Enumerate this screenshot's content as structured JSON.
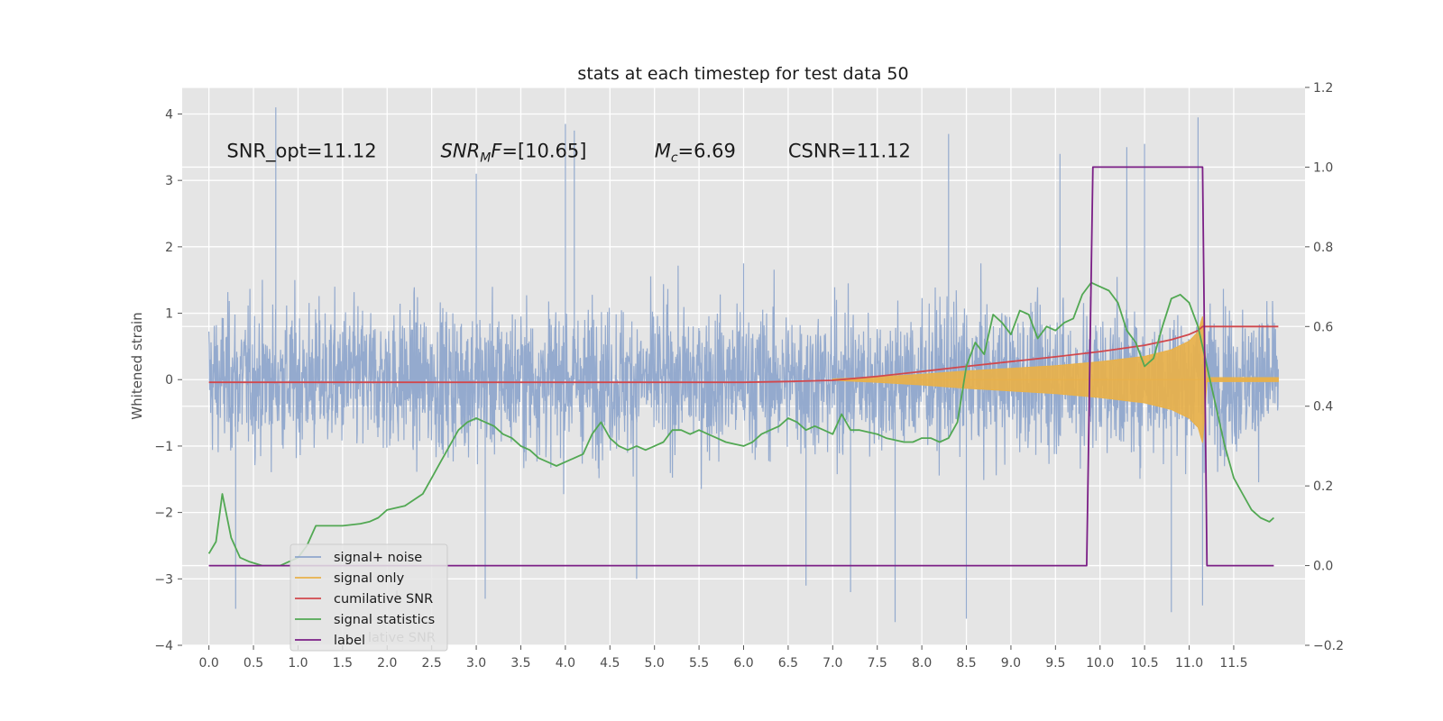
{
  "chart_data": {
    "type": "line",
    "title": "stats at each timestep for test data 50",
    "ylabel_left": "Whitened strain",
    "xlim": [
      -0.3,
      12.3
    ],
    "ylim_left": [
      -4.0,
      4.4
    ],
    "ylim_right": [
      -0.2,
      1.2
    ],
    "x_ticks": [
      0.0,
      0.5,
      1.0,
      1.5,
      2.0,
      2.5,
      3.0,
      3.5,
      4.0,
      4.5,
      5.0,
      5.5,
      6.0,
      6.5,
      7.0,
      7.5,
      8.0,
      8.5,
      9.0,
      9.5,
      10.0,
      10.5,
      11.0,
      11.5
    ],
    "x_tick_labels": [
      "0.0",
      "0.5",
      "1.0",
      "1.5",
      "2.0",
      "2.5",
      "3.0",
      "3.5",
      "4.0",
      "4.5",
      "5.0",
      "5.5",
      "6.0",
      "6.5",
      "7.0",
      "7.5",
      "8.0",
      "8.5",
      "9.0",
      "9.5",
      "10.0",
      "10.5",
      "11.0",
      "11.5"
    ],
    "y_left_ticks": [
      -4,
      -3,
      -2,
      -1,
      0,
      1,
      2,
      3,
      4
    ],
    "y_left_tick_labels": [
      "−4",
      "−3",
      "−2",
      "−1",
      "0",
      "1",
      "2",
      "3",
      "4"
    ],
    "y_right_ticks": [
      -0.2,
      0.0,
      0.2,
      0.4,
      0.6,
      0.8,
      1.0,
      1.2
    ],
    "y_right_tick_labels": [
      "−0.2",
      "0.0",
      "0.2",
      "0.4",
      "0.6",
      "0.8",
      "1.0",
      "1.2"
    ],
    "grid": true,
    "annotations": [
      {
        "parts": [
          {
            "t": "SNR_opt=11.12",
            "s": "n"
          }
        ],
        "x": 0.2,
        "y": 3.35
      },
      {
        "parts": [
          {
            "t": "SNR",
            "s": "i"
          },
          {
            "t": "M",
            "s": "sub"
          },
          {
            "t": "F",
            "s": "i"
          },
          {
            "t": "=[10.65]",
            "s": "n"
          }
        ],
        "x": 2.6,
        "y": 3.35
      },
      {
        "parts": [
          {
            "t": "M",
            "s": "i"
          },
          {
            "t": "c",
            "s": "sub"
          },
          {
            "t": "=6.69",
            "s": "n"
          }
        ],
        "x": 5.0,
        "y": 3.35
      },
      {
        "parts": [
          {
            "t": "CSNR=11.12",
            "s": "n"
          }
        ],
        "x": 6.5,
        "y": 3.35
      }
    ],
    "series": [
      {
        "name": "signal+ noise",
        "color": "#8fa6cc",
        "axis": "left",
        "style": "noise",
        "x_range": [
          0.0,
          12.0
        ],
        "typical_range": [
          -2.1,
          2.1
        ],
        "spikes": [
          [
            0.75,
            4.1
          ],
          [
            4.0,
            3.85
          ],
          [
            4.1,
            3.75
          ],
          [
            3.0,
            3.1
          ],
          [
            11.1,
            3.95
          ],
          [
            8.3,
            3.7
          ],
          [
            9.55,
            3.4
          ],
          [
            10.3,
            3.5
          ],
          [
            10.5,
            3.55
          ],
          [
            6.0,
            1.75
          ],
          [
            0.3,
            -3.45
          ],
          [
            4.8,
            -3.0
          ],
          [
            6.7,
            -3.1
          ],
          [
            7.2,
            -3.2
          ],
          [
            7.7,
            -3.65
          ],
          [
            8.5,
            -3.6
          ],
          [
            10.8,
            -3.5
          ],
          [
            11.15,
            -3.4
          ],
          [
            3.1,
            -3.3
          ]
        ]
      },
      {
        "name": "signal only",
        "color": "#e8b14a",
        "axis": "left",
        "style": "chirp",
        "x": [
          7.0,
          7.5,
          8.0,
          8.5,
          9.0,
          9.5,
          10.0,
          10.5,
          10.8,
          11.0,
          11.1,
          11.15,
          11.2,
          12.0
        ],
        "amplitude": [
          0.01,
          0.04,
          0.08,
          0.13,
          0.17,
          0.21,
          0.27,
          0.35,
          0.45,
          0.58,
          0.72,
          0.95,
          0.03,
          0.03
        ]
      },
      {
        "name": "cumilative SNR",
        "color": "#d1484d",
        "axis": "right",
        "x": [
          0.0,
          6.0,
          6.5,
          7.0,
          7.5,
          8.0,
          8.5,
          9.0,
          9.5,
          10.0,
          10.5,
          10.8,
          11.0,
          11.1,
          11.15,
          11.2,
          12.0
        ],
        "values": [
          0.46,
          0.46,
          0.462,
          0.465,
          0.475,
          0.487,
          0.5,
          0.512,
          0.524,
          0.537,
          0.553,
          0.567,
          0.58,
          0.59,
          0.6,
          0.6,
          0.6
        ]
      },
      {
        "name": "signal statistics",
        "color": "#52a853",
        "axis": "right",
        "x": [
          0.0,
          0.08,
          0.15,
          0.25,
          0.35,
          0.45,
          0.6,
          0.8,
          1.0,
          1.1,
          1.2,
          1.3,
          1.5,
          1.7,
          1.8,
          1.9,
          2.0,
          2.2,
          2.3,
          2.4,
          2.5,
          2.6,
          2.7,
          2.8,
          2.9,
          3.0,
          3.1,
          3.2,
          3.3,
          3.4,
          3.5,
          3.6,
          3.7,
          3.8,
          3.9,
          4.0,
          4.1,
          4.2,
          4.3,
          4.4,
          4.5,
          4.6,
          4.7,
          4.8,
          4.9,
          5.0,
          5.1,
          5.2,
          5.3,
          5.4,
          5.5,
          5.6,
          5.7,
          5.8,
          5.9,
          6.0,
          6.1,
          6.2,
          6.3,
          6.4,
          6.5,
          6.6,
          6.7,
          6.8,
          6.9,
          7.0,
          7.1,
          7.2,
          7.3,
          7.5,
          7.6,
          7.8,
          7.9,
          8.0,
          8.1,
          8.2,
          8.3,
          8.4,
          8.5,
          8.6,
          8.7,
          8.8,
          8.9,
          9.0,
          9.1,
          9.2,
          9.3,
          9.4,
          9.5,
          9.6,
          9.7,
          9.8,
          9.9,
          10.0,
          10.1,
          10.2,
          10.3,
          10.4,
          10.5,
          10.6,
          10.7,
          10.8,
          10.9,
          11.0,
          11.1,
          11.2,
          11.3,
          11.4,
          11.5,
          11.6,
          11.7,
          11.8,
          11.9,
          11.95
        ],
        "values": [
          0.03,
          0.06,
          0.18,
          0.07,
          0.02,
          0.01,
          0.0,
          0.0,
          0.02,
          0.05,
          0.1,
          0.1,
          0.1,
          0.105,
          0.11,
          0.12,
          0.14,
          0.15,
          0.165,
          0.18,
          0.22,
          0.26,
          0.3,
          0.34,
          0.36,
          0.37,
          0.36,
          0.35,
          0.33,
          0.32,
          0.3,
          0.29,
          0.27,
          0.26,
          0.25,
          0.26,
          0.27,
          0.28,
          0.33,
          0.36,
          0.32,
          0.3,
          0.29,
          0.3,
          0.29,
          0.3,
          0.31,
          0.34,
          0.34,
          0.33,
          0.34,
          0.33,
          0.32,
          0.31,
          0.305,
          0.3,
          0.31,
          0.33,
          0.34,
          0.35,
          0.37,
          0.36,
          0.34,
          0.35,
          0.34,
          0.33,
          0.38,
          0.34,
          0.34,
          0.33,
          0.32,
          0.31,
          0.31,
          0.32,
          0.32,
          0.31,
          0.32,
          0.36,
          0.5,
          0.56,
          0.53,
          0.63,
          0.61,
          0.58,
          0.64,
          0.63,
          0.57,
          0.6,
          0.59,
          0.61,
          0.62,
          0.68,
          0.71,
          0.7,
          0.69,
          0.66,
          0.59,
          0.56,
          0.5,
          0.52,
          0.6,
          0.67,
          0.68,
          0.66,
          0.6,
          0.5,
          0.4,
          0.3,
          0.22,
          0.18,
          0.14,
          0.12,
          0.11,
          0.12
        ]
      },
      {
        "name": "label",
        "color": "#7b1f86",
        "axis": "right",
        "x": [
          0.0,
          9.85,
          9.92,
          11.15,
          11.2,
          11.95
        ],
        "values": [
          0.0,
          0.0,
          1.0,
          1.0,
          0.0,
          0.0
        ]
      }
    ],
    "legend": {
      "placement": "lower-left",
      "entries": [
        {
          "label": "signal+ noise",
          "color": "#8fa6cc"
        },
        {
          "label": "signal only",
          "color": "#e8b14a"
        },
        {
          "label": "cumilative SNR",
          "color": "#d1484d"
        },
        {
          "label": "signal statistics",
          "color": "#52a853"
        },
        {
          "label": "label",
          "color": "#7b1f86"
        }
      ],
      "underlying_text": [
        "lative SNR",
        "l"
      ]
    }
  }
}
